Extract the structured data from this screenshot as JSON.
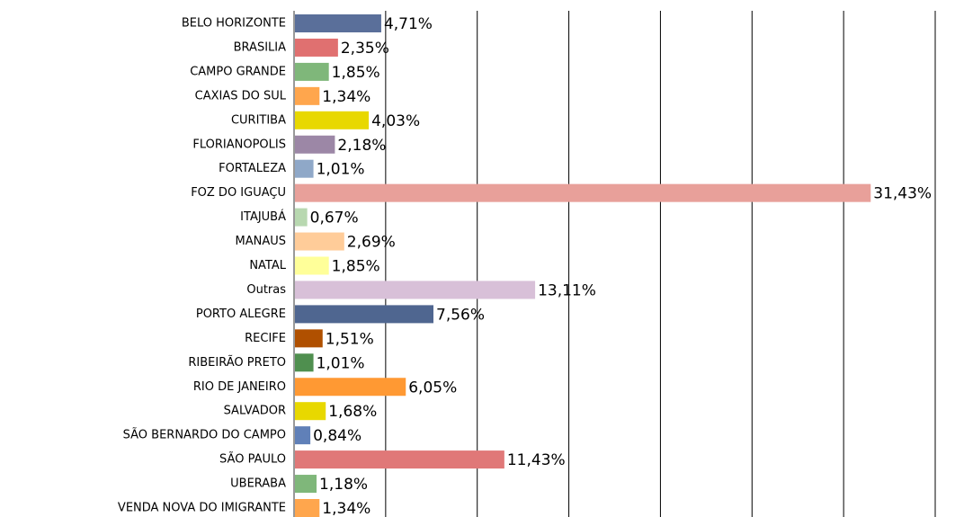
{
  "chart_data": {
    "type": "bar",
    "orientation": "horizontal",
    "categories": [
      "BELO HORIZONTE",
      "BRASILIA",
      "CAMPO GRANDE",
      "CAXIAS DO SUL",
      "CURITIBA",
      "FLORIANOPOLIS",
      "FORTALEZA",
      "FOZ DO IGUAÇU",
      "ITAJUBÁ",
      "MANAUS",
      "NATAL",
      "Outras",
      "PORTO ALEGRE",
      "RECIFE",
      "RIBEIRÃO PRETO",
      "RIO DE JANEIRO",
      "SALVADOR",
      "SÃO BERNARDO DO CAMPO",
      "SÃO PAULO",
      "UBERABA",
      "VENDA NOVA DO IMIGRANTE"
    ],
    "values": [
      4.71,
      2.35,
      1.85,
      1.34,
      4.03,
      2.18,
      1.01,
      31.43,
      0.67,
      2.69,
      1.85,
      13.11,
      7.56,
      1.51,
      1.01,
      6.05,
      1.68,
      0.84,
      11.43,
      1.18,
      1.34
    ],
    "value_labels": [
      "4,71%",
      "2,35%",
      "1,85%",
      "1,34%",
      "4,03%",
      "2,18%",
      "1,01%",
      "31,43%",
      "0,67%",
      "2,69%",
      "1,85%",
      "13,11%",
      "7,56%",
      "1,51%",
      "1,01%",
      "6,05%",
      "1,68%",
      "0,84%",
      "11,43%",
      "1,18%",
      "1,34%"
    ],
    "colors": [
      "#5a6f9a",
      "#e07070",
      "#7fb77a",
      "#ffa64d",
      "#e8d800",
      "#9c87a6",
      "#8fa8c8",
      "#e8a09a",
      "#b8d8b0",
      "#ffcc99",
      "#ffff99",
      "#d8c0d8",
      "#4f6690",
      "#b05000",
      "#4f8f4f",
      "#ff9933",
      "#e8d800",
      "#6080b8",
      "#e07878",
      "#7fb77a",
      "#ffa64d"
    ],
    "xlim": [
      0,
      35
    ],
    "xticks": [
      0,
      5,
      10,
      15,
      20,
      25,
      30,
      35
    ],
    "grid": true
  }
}
